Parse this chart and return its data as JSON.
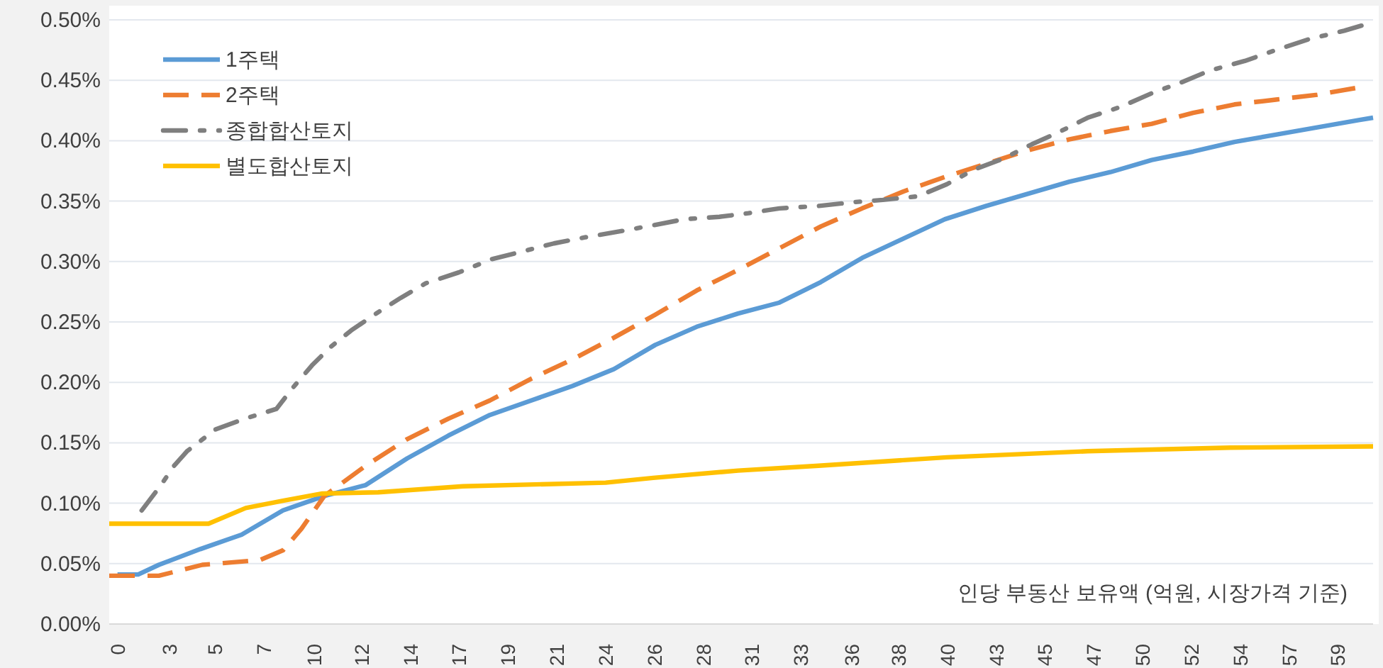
{
  "chart_data": {
    "type": "line",
    "xlabel": "인당 부동산 보유액 (억원, 시장가격 기준)",
    "xlim": [
      -0.4,
      60.7
    ],
    "xticks": [
      {
        "value": 0,
        "label": "0"
      },
      {
        "value": 2.5,
        "label": "3"
      },
      {
        "value": 4.72,
        "label": "5"
      },
      {
        "value": 7.08,
        "label": "7"
      },
      {
        "value": 9.5,
        "label": "10"
      },
      {
        "value": 11.8,
        "label": "12"
      },
      {
        "value": 14.16,
        "label": "14"
      },
      {
        "value": 16.52,
        "label": "17"
      },
      {
        "value": 18.88,
        "label": "19"
      },
      {
        "value": 21.24,
        "label": "21"
      },
      {
        "value": 23.6,
        "label": "24"
      },
      {
        "value": 25.96,
        "label": "26"
      },
      {
        "value": 28.32,
        "label": "28"
      },
      {
        "value": 30.68,
        "label": "31"
      },
      {
        "value": 33.04,
        "label": "33"
      },
      {
        "value": 35.5,
        "label": "36"
      },
      {
        "value": 37.76,
        "label": "38"
      },
      {
        "value": 40.12,
        "label": "40"
      },
      {
        "value": 42.5,
        "label": "43"
      },
      {
        "value": 44.84,
        "label": "45"
      },
      {
        "value": 47.2,
        "label": "47"
      },
      {
        "value": 49.56,
        "label": "50"
      },
      {
        "value": 51.92,
        "label": "52"
      },
      {
        "value": 54.28,
        "label": "54"
      },
      {
        "value": 56.64,
        "label": "57"
      },
      {
        "value": 59,
        "label": "59"
      }
    ],
    "ylim": [
      0,
      0.5
    ],
    "yticks": [
      {
        "value": 0,
        "label": "0.00%"
      },
      {
        "value": 0.05,
        "label": "0.05%"
      },
      {
        "value": 0.1,
        "label": "0.10%"
      },
      {
        "value": 0.15,
        "label": "0.15%"
      },
      {
        "value": 0.2,
        "label": "0.20%"
      },
      {
        "value": 0.25,
        "label": "0.25%"
      },
      {
        "value": 0.3,
        "label": "0.30%"
      },
      {
        "value": 0.35,
        "label": "0.35%"
      },
      {
        "value": 0.4,
        "label": "0.40%"
      },
      {
        "value": 0.45,
        "label": "0.45%"
      },
      {
        "value": 0.5,
        "label": "0.50%"
      }
    ],
    "grid": "y",
    "legend": "top left",
    "series": [
      {
        "name": "1주택",
        "color": "#5b9bd5",
        "line_style": "solid",
        "x": [
          0,
          1,
          2,
          4,
          6,
          8,
          10,
          12,
          14,
          16,
          18,
          20,
          22,
          24,
          26,
          28,
          30,
          32,
          34,
          36,
          38,
          40,
          42,
          44,
          46,
          48,
          50,
          52,
          54,
          56,
          58,
          60,
          60.7
        ],
        "values": [
          0.041,
          0.041,
          0.049,
          0.062,
          0.074,
          0.094,
          0.106,
          0.115,
          0.137,
          0.156,
          0.173,
          0.185,
          0.197,
          0.211,
          0.231,
          0.246,
          0.257,
          0.266,
          0.283,
          0.303,
          0.319,
          0.335,
          0.346,
          0.356,
          0.366,
          0.374,
          0.384,
          0.391,
          0.399,
          0.405,
          0.411,
          0.417,
          0.419
        ]
      },
      {
        "name": "2주택",
        "color": "#ed7d31",
        "line_style": "dashed",
        "x": [
          -0.4,
          2,
          4.1,
          6.9,
          8,
          8.9,
          10,
          12,
          14,
          16,
          18,
          20,
          22,
          24,
          26,
          28,
          30,
          32,
          34,
          36,
          38,
          40,
          42,
          44,
          46,
          48,
          50,
          52,
          54,
          56,
          58,
          60
        ],
        "values": [
          0.04,
          0.04,
          0.049,
          0.053,
          0.061,
          0.079,
          0.106,
          0.131,
          0.153,
          0.17,
          0.185,
          0.203,
          0.219,
          0.237,
          0.256,
          0.276,
          0.293,
          0.311,
          0.329,
          0.344,
          0.358,
          0.37,
          0.381,
          0.392,
          0.401,
          0.408,
          0.414,
          0.423,
          0.43,
          0.434,
          0.438,
          0.444
        ]
      },
      {
        "name": "종합합산토지",
        "color": "#7f7f7f",
        "line_style": "dashdot",
        "x": [
          1.17,
          2.06,
          2.74,
          3.36,
          4.73,
          6.17,
          7.68,
          8.5,
          9.4,
          10.28,
          11.3,
          12.6,
          13.7,
          14.9,
          16.5,
          18.1,
          19.5,
          21.1,
          22.6,
          24.3,
          25.9,
          27.4,
          29.1,
          30.5,
          32,
          33.9,
          35.5,
          37,
          38.7,
          40.1,
          41.4,
          42.8,
          44.2,
          45.5,
          46.9,
          48.5,
          50.1,
          51.4,
          52.8,
          54.5,
          56,
          57.6,
          59.3,
          60.7
        ],
        "values": [
          0.094,
          0.114,
          0.131,
          0.143,
          0.161,
          0.17,
          0.178,
          0.196,
          0.214,
          0.229,
          0.243,
          0.258,
          0.27,
          0.282,
          0.291,
          0.302,
          0.308,
          0.315,
          0.32,
          0.325,
          0.33,
          0.335,
          0.337,
          0.34,
          0.344,
          0.346,
          0.349,
          0.351,
          0.354,
          0.364,
          0.376,
          0.385,
          0.397,
          0.407,
          0.419,
          0.428,
          0.44,
          0.448,
          0.458,
          0.466,
          0.475,
          0.484,
          0.491,
          0.498
        ]
      },
      {
        "name": "별도합산토지",
        "color": "#ffc000",
        "line_style": "solid",
        "x": [
          -0.4,
          4.4,
          6.2,
          8,
          9.9,
          12.6,
          16.7,
          23.6,
          25.9,
          30,
          33.9,
          40.1,
          46.9,
          53.8,
          60.7
        ],
        "values": [
          0.083,
          0.083,
          0.096,
          0.102,
          0.108,
          0.109,
          0.114,
          0.117,
          0.121,
          0.127,
          0.131,
          0.138,
          0.143,
          0.146,
          0.147
        ]
      }
    ]
  }
}
